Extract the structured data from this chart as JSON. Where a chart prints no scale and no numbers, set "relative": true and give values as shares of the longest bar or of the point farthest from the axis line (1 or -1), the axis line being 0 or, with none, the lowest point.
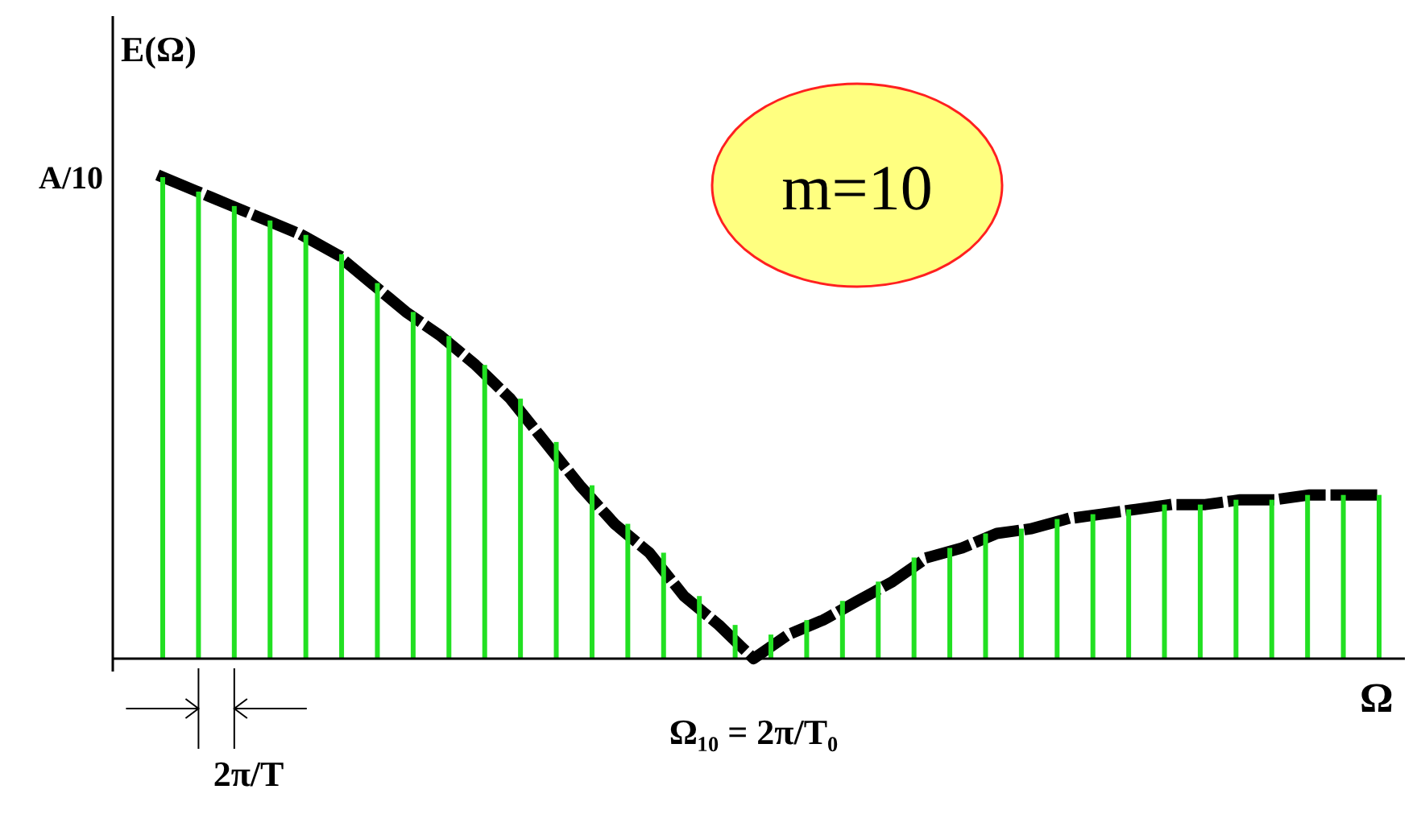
{
  "chart_data": [
    {
      "type": "bar",
      "relative": true,
      "xlabel": "Ω",
      "ylabel": "E(Ω)",
      "legend": false,
      "grid": false,
      "color": "#22e022",
      "categories": [
        null,
        null,
        null,
        null,
        null,
        null,
        null,
        null,
        null,
        null,
        null,
        null,
        null,
        null,
        null,
        null,
        null,
        null,
        null,
        null,
        null,
        null,
        null,
        null,
        null,
        null,
        null,
        null,
        null,
        null,
        null,
        null,
        null,
        null,
        null
      ],
      "values": [
        1,
        0.97,
        0.94,
        0.91,
        0.88,
        0.84,
        0.78,
        0.72,
        0.67,
        0.61,
        0.54,
        0.45,
        0.36,
        0.28,
        0.22,
        0.13,
        0.07,
        0.05,
        0.08,
        0.12,
        0.16,
        0.21,
        0.23,
        0.26,
        0.27,
        0.29,
        0.3,
        0.31,
        0.32,
        0.32,
        0.33,
        0.33,
        0.34,
        0.34,
        0.34
      ],
      "annotations": [
        "A/10",
        "m=10",
        "Ω₁₀ = 2π/T₀",
        "2π/T"
      ]
    },
    {
      "type": "line",
      "relative": true,
      "color": "#000000",
      "line_style": "dashed",
      "marker": "none",
      "categories": [
        null,
        null,
        null,
        null,
        null,
        null,
        null,
        null,
        null,
        null,
        null,
        null,
        null,
        null,
        null,
        null,
        null,
        null,
        null,
        null,
        null,
        null,
        null,
        null,
        null,
        null,
        null,
        null,
        null,
        null,
        null,
        null,
        null,
        null,
        null,
        null
      ],
      "values": [
        1,
        0.97,
        0.94,
        0.91,
        0.88,
        0.84,
        0.78,
        0.72,
        0.67,
        0.61,
        0.54,
        0.45,
        0.36,
        0.28,
        0.22,
        0.13,
        0.07,
        0,
        0.05,
        0.08,
        0.12,
        0.16,
        0.21,
        0.23,
        0.26,
        0.27,
        0.29,
        0.3,
        0.31,
        0.32,
        0.32,
        0.33,
        0.33,
        0.34,
        0.34,
        0.34
      ]
    }
  ]
}
